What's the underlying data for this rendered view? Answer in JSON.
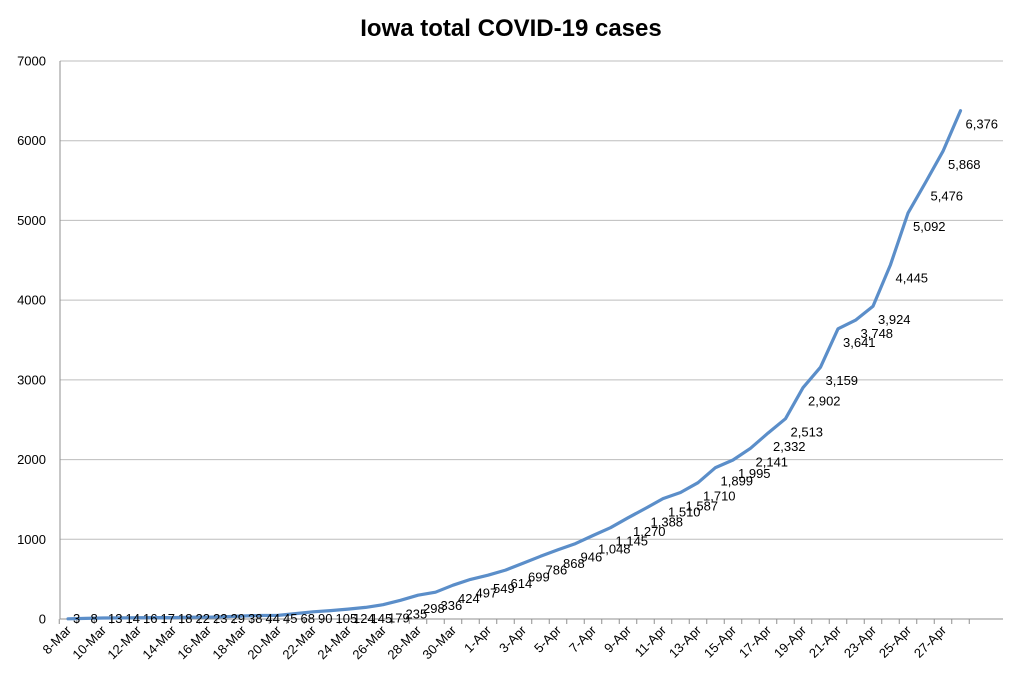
{
  "chart_data": {
    "type": "line",
    "title": "Iowa total COVID-19 cases",
    "xlabel": "",
    "ylabel": "",
    "ylim": [
      0,
      7000
    ],
    "yticks": [
      "0",
      "1000",
      "2000",
      "3000",
      "4000",
      "5000",
      "6000",
      "7000"
    ],
    "grid": true,
    "legend": "none",
    "line_color": "#5b8ec9",
    "categories": [
      "8-Mar",
      "9-Mar",
      "10-Mar",
      "11-Mar",
      "12-Mar",
      "13-Mar",
      "14-Mar",
      "15-Mar",
      "16-Mar",
      "17-Mar",
      "18-Mar",
      "19-Mar",
      "20-Mar",
      "21-Mar",
      "22-Mar",
      "23-Mar",
      "24-Mar",
      "25-Mar",
      "26-Mar",
      "27-Mar",
      "28-Mar",
      "29-Mar",
      "30-Mar",
      "31-Mar",
      "1-Apr",
      "2-Apr",
      "3-Apr",
      "4-Apr",
      "5-Apr",
      "6-Apr",
      "7-Apr",
      "8-Apr",
      "9-Apr",
      "10-Apr",
      "11-Apr",
      "12-Apr",
      "13-Apr",
      "14-Apr",
      "15-Apr",
      "16-Apr",
      "17-Apr",
      "18-Apr",
      "19-Apr",
      "20-Apr",
      "21-Apr",
      "22-Apr",
      "23-Apr",
      "24-Apr",
      "25-Apr",
      "26-Apr",
      "27-Apr",
      "28-Apr"
    ],
    "tick_labels": [
      "8-Mar",
      "10-Mar",
      "12-Mar",
      "14-Mar",
      "16-Mar",
      "18-Mar",
      "20-Mar",
      "22-Mar",
      "24-Mar",
      "26-Mar",
      "28-Mar",
      "30-Mar",
      "1-Apr",
      "3-Apr",
      "5-Apr",
      "7-Apr",
      "9-Apr",
      "11-Apr",
      "13-Apr",
      "15-Apr",
      "17-Apr",
      "19-Apr",
      "21-Apr",
      "23-Apr",
      "25-Apr",
      "27-Apr"
    ],
    "values": [
      3,
      8,
      13,
      14,
      16,
      17,
      18,
      22,
      23,
      29,
      38,
      44,
      45,
      68,
      90,
      105,
      124,
      145,
      179,
      235,
      298,
      336,
      424,
      497,
      549,
      614,
      699,
      786,
      868,
      946,
      1048,
      1145,
      1270,
      1388,
      1510,
      1587,
      1710,
      1899,
      1995,
      2141,
      2332,
      2513,
      2902,
      3159,
      3641,
      3748,
      3924,
      4445,
      5092,
      5476,
      5868,
      6376
    ],
    "data_labels": [
      "3",
      "8",
      "13",
      "14",
      "16",
      "17",
      "18",
      "22",
      "23",
      "29",
      "38",
      "44",
      "45",
      "68",
      "90",
      "105",
      "124",
      "145",
      "179",
      "235",
      "298",
      "336",
      "424",
      "497",
      "549",
      "614",
      "699",
      "786",
      "868",
      "946",
      "1,048",
      "1,145",
      "1,270",
      "1,388",
      "1,510",
      "1,587",
      "1,710",
      "1,899",
      "1,995",
      "2,141",
      "2,332",
      "2,513",
      "2,902",
      "3,159",
      "3,641",
      "3,748",
      "3,924",
      "4,445",
      "5,092",
      "5,476",
      "5,868",
      "6,376"
    ]
  }
}
